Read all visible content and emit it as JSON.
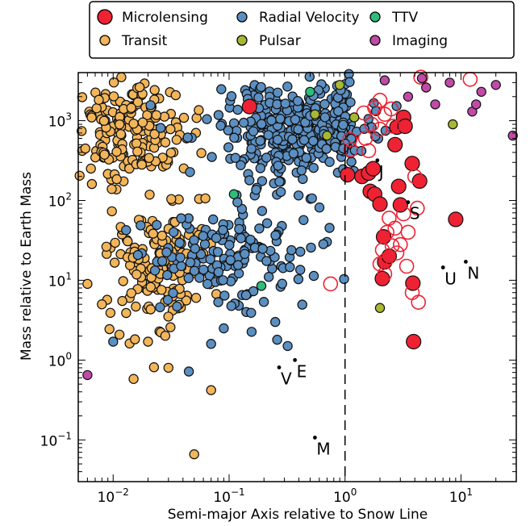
{
  "chart_data": {
    "type": "scatter",
    "xlabel": "Semi-major Axis relative to Snow Line",
    "ylabel": "Mass relative to Earth Mass",
    "xscale": "log",
    "yscale": "log",
    "xlim": [
      0.005,
      30
    ],
    "ylim": [
      0.03,
      4000
    ],
    "x_ticks": [
      {
        "value": 0.01,
        "base": "10",
        "exp": "−2"
      },
      {
        "value": 0.1,
        "base": "10",
        "exp": "−1"
      },
      {
        "value": 1,
        "base": "10",
        "exp": "0"
      },
      {
        "value": 10,
        "base": "10",
        "exp": "1"
      }
    ],
    "y_ticks": [
      {
        "value": 0.1,
        "base": "10",
        "exp": "−1"
      },
      {
        "value": 1,
        "base": "10",
        "exp": "0"
      },
      {
        "value": 10,
        "base": "10",
        "exp": "1"
      },
      {
        "value": 100,
        "base": "10",
        "exp": "2"
      },
      {
        "value": 1000,
        "base": "10",
        "exp": "3"
      }
    ],
    "reference_line": {
      "x": 1,
      "style": "dashed"
    },
    "legend": {
      "position": "top",
      "entries": [
        {
          "label": "Microlensing",
          "color": "#ee2233",
          "edge": "#000000",
          "marker": "large"
        },
        {
          "label": "Radial Velocity",
          "color": "#5b8fc2",
          "edge": "#000000",
          "marker": "small"
        },
        {
          "label": "TTV",
          "color": "#2ebd7a",
          "edge": "#000000",
          "marker": "small"
        },
        {
          "label": "Transit",
          "color": "#f2b55a",
          "edge": "#000000",
          "marker": "small"
        },
        {
          "label": "Pulsar",
          "color": "#a9b832",
          "edge": "#000000",
          "marker": "small"
        },
        {
          "label": "Imaging",
          "color": "#c14aa8",
          "edge": "#000000",
          "marker": "small"
        }
      ]
    },
    "solar_system": [
      {
        "label": "M",
        "x": 0.55,
        "y": 0.107
      },
      {
        "label": "V",
        "x": 0.27,
        "y": 0.81
      },
      {
        "label": "E",
        "x": 0.37,
        "y": 1.0
      },
      {
        "label": "J",
        "x": 1.9,
        "y": 318
      },
      {
        "label": "S",
        "x": 3.5,
        "y": 95
      },
      {
        "label": "U",
        "x": 7.0,
        "y": 14.5
      },
      {
        "label": "N",
        "x": 11.0,
        "y": 17.1
      }
    ],
    "series": [
      {
        "name": "Microlensing",
        "style": "filled-large",
        "points": [
          [
            0.15,
            1500
          ],
          [
            1.05,
            210
          ],
          [
            1.4,
            200
          ],
          [
            1.6,
            220
          ],
          [
            1.65,
            130
          ],
          [
            1.75,
            250
          ],
          [
            1.8,
            120
          ],
          [
            2.0,
            90
          ],
          [
            2.15,
            35
          ],
          [
            2.2,
            17
          ],
          [
            2.1,
            10.5
          ],
          [
            2.4,
            20
          ],
          [
            2.7,
            500
          ],
          [
            2.8,
            830
          ],
          [
            2.9,
            150
          ],
          [
            3.0,
            88
          ],
          [
            3.2,
            1100
          ],
          [
            3.3,
            850
          ],
          [
            3.8,
            290
          ],
          [
            3.85,
            9.2
          ],
          [
            3.9,
            1.7
          ],
          [
            4.4,
            175
          ],
          [
            9.0,
            58
          ]
        ]
      },
      {
        "name": "Microlensing",
        "style": "open-large",
        "points": [
          [
            0.75,
            9
          ],
          [
            1.1,
            580
          ],
          [
            1.12,
            430
          ],
          [
            1.45,
            1250
          ],
          [
            1.5,
            600
          ],
          [
            1.6,
            420
          ],
          [
            1.7,
            900
          ],
          [
            1.8,
            1450
          ],
          [
            2.0,
            1800
          ],
          [
            2.0,
            780
          ],
          [
            2.2,
            1200
          ],
          [
            2.3,
            40
          ],
          [
            2.4,
            60
          ],
          [
            2.5,
            1400
          ],
          [
            2.55,
            27
          ],
          [
            2.6,
            850
          ],
          [
            2.7,
            45
          ],
          [
            2.8,
            22
          ],
          [
            3.0,
            28
          ],
          [
            3.2,
            68
          ],
          [
            3.4,
            15
          ],
          [
            3.5,
            40
          ],
          [
            3.8,
            7
          ],
          [
            4.0,
            200
          ],
          [
            4.2,
            80
          ],
          [
            4.3,
            5.3
          ],
          [
            4.5,
            3500
          ],
          [
            2.2,
            12
          ],
          [
            2.25,
            18
          ],
          [
            2.0,
            16
          ],
          [
            2.1,
            24
          ],
          [
            12.0,
            3300
          ]
        ]
      },
      {
        "name": "TTV",
        "points": [
          [
            0.11,
            120
          ],
          [
            0.19,
            8.5
          ],
          [
            0.5,
            2300
          ]
        ]
      },
      {
        "name": "Pulsar",
        "points": [
          [
            0.55,
            1200
          ],
          [
            0.7,
            650
          ],
          [
            0.9,
            2800
          ],
          [
            1.2,
            1100
          ],
          [
            2.0,
            4.5
          ],
          [
            8.5,
            900
          ]
        ]
      },
      {
        "name": "Imaging",
        "points": [
          [
            0.006,
            0.65
          ],
          [
            2.2,
            3200
          ],
          [
            3.5,
            2000
          ],
          [
            4.6,
            3400
          ],
          [
            5.0,
            2600
          ],
          [
            6.0,
            1600
          ],
          [
            8.0,
            3000
          ],
          [
            12.5,
            1300
          ],
          [
            13.5,
            1600
          ],
          [
            15.0,
            2300
          ],
          [
            20.0,
            2800
          ],
          [
            28.0,
            650
          ]
        ]
      }
    ]
  }
}
